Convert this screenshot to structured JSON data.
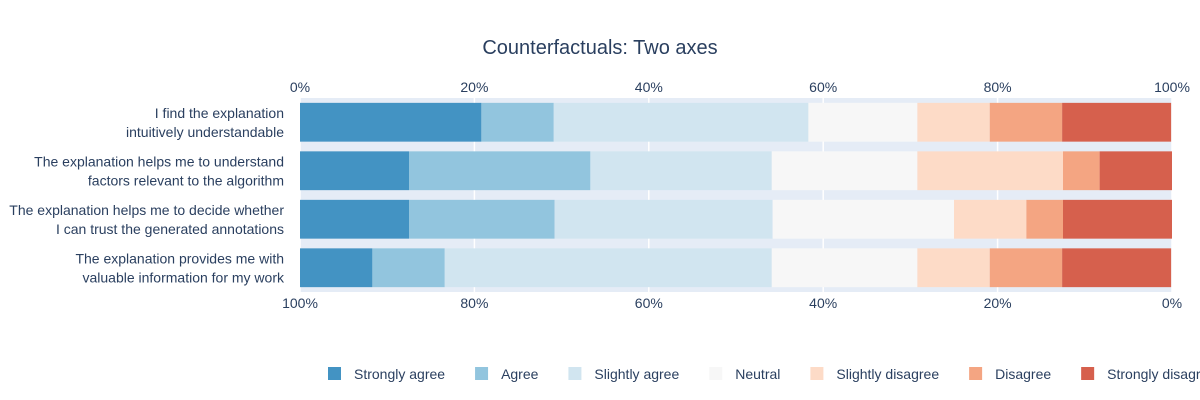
{
  "chart_data": {
    "type": "bar",
    "orientation": "horizontal",
    "stacked": true,
    "title": "Counterfactuals: Two axes",
    "top_axis_ticks": [
      "0%",
      "20%",
      "40%",
      "60%",
      "80%",
      "100%"
    ],
    "bottom_axis_ticks": [
      "100%",
      "80%",
      "60%",
      "40%",
      "20%",
      "0%"
    ],
    "xlim": [
      0,
      100
    ],
    "grid": true,
    "legend_position": "bottom",
    "categories": [
      [
        "I find the explanation",
        "intuitively understandable"
      ],
      [
        "The explanation helps me to understand",
        "factors relevant to the algorithm"
      ],
      [
        "The explanation helps me to decide whether",
        "I can trust the generated annotations"
      ],
      [
        "The explanation provides me with",
        "valuable information for my work"
      ]
    ],
    "series": [
      {
        "name": "Strongly agree",
        "color": "#4393c3",
        "values": [
          20.8,
          12.5,
          12.5,
          8.3
        ]
      },
      {
        "name": "Agree",
        "color": "#92c5de",
        "values": [
          8.3,
          20.8,
          16.7,
          8.3
        ]
      },
      {
        "name": "Slightly agree",
        "color": "#d1e5f0",
        "values": [
          29.2,
          20.8,
          25.0,
          37.5
        ]
      },
      {
        "name": "Neutral",
        "color": "#f7f7f7",
        "values": [
          12.5,
          16.7,
          20.8,
          16.7
        ]
      },
      {
        "name": "Slightly disagree",
        "color": "#fddbc7",
        "values": [
          8.3,
          16.7,
          8.3,
          8.3
        ]
      },
      {
        "name": "Disagree",
        "color": "#f4a582",
        "values": [
          8.3,
          4.2,
          4.2,
          8.3
        ]
      },
      {
        "name": "Strongly disagree",
        "color": "#d6604d",
        "values": [
          12.5,
          8.3,
          12.5,
          12.5
        ]
      }
    ],
    "plot_background": "#e5ecf6",
    "text_color": "#2a3f5f"
  }
}
